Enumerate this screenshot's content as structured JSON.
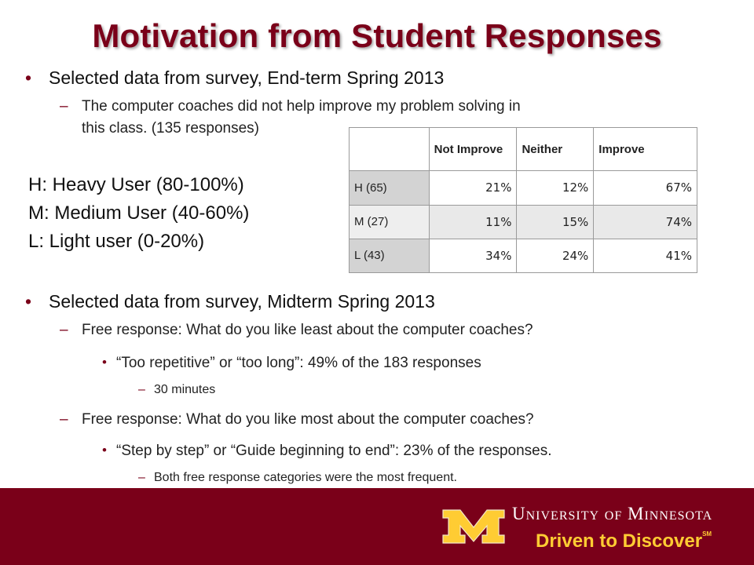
{
  "title": "Motivation from Student Responses",
  "section1": {
    "heading": "Selected data from survey, End-term Spring 2013",
    "statement_line1": "The computer coaches did not help improve my problem solving in",
    "statement_line2": "this class.  (135 responses)"
  },
  "legend": {
    "heavy": "H: Heavy User (80-100%)",
    "medium": "M: Medium User (40-60%)",
    "light": "L: Light user (0-20%)"
  },
  "table": {
    "headers": [
      "",
      "Not Improve",
      "Neither",
      "Improve"
    ],
    "rows": [
      {
        "label": "H (65)",
        "values": [
          "21%",
          "12%",
          "67%"
        ]
      },
      {
        "label": "M (27)",
        "values": [
          "11%",
          "15%",
          "74%"
        ]
      },
      {
        "label": "L (43)",
        "values": [
          "34%",
          "24%",
          "41%"
        ]
      }
    ]
  },
  "section2": {
    "heading": "Selected data from survey, Midterm Spring 2013",
    "least_question": "Free response: What do you like least about the computer coaches?",
    "least_answer": "“Too repetitive” or “too long”: 49% of the 183 responses",
    "least_detail": "30 minutes",
    "most_question": "Free response: What do you like most about the computer coaches?",
    "most_answer": "“Step by step” or “Guide beginning to end”: 23% of the responses.",
    "most_detail": "Both free response categories were the most frequent."
  },
  "footer": {
    "university": "University of Minnesota",
    "tagline": "Driven to Discover",
    "mark": "SM",
    "colors": {
      "maroon": "#7a0019",
      "gold": "#ffcc33"
    }
  },
  "markers": {
    "bullet": "•",
    "dash": "–"
  }
}
